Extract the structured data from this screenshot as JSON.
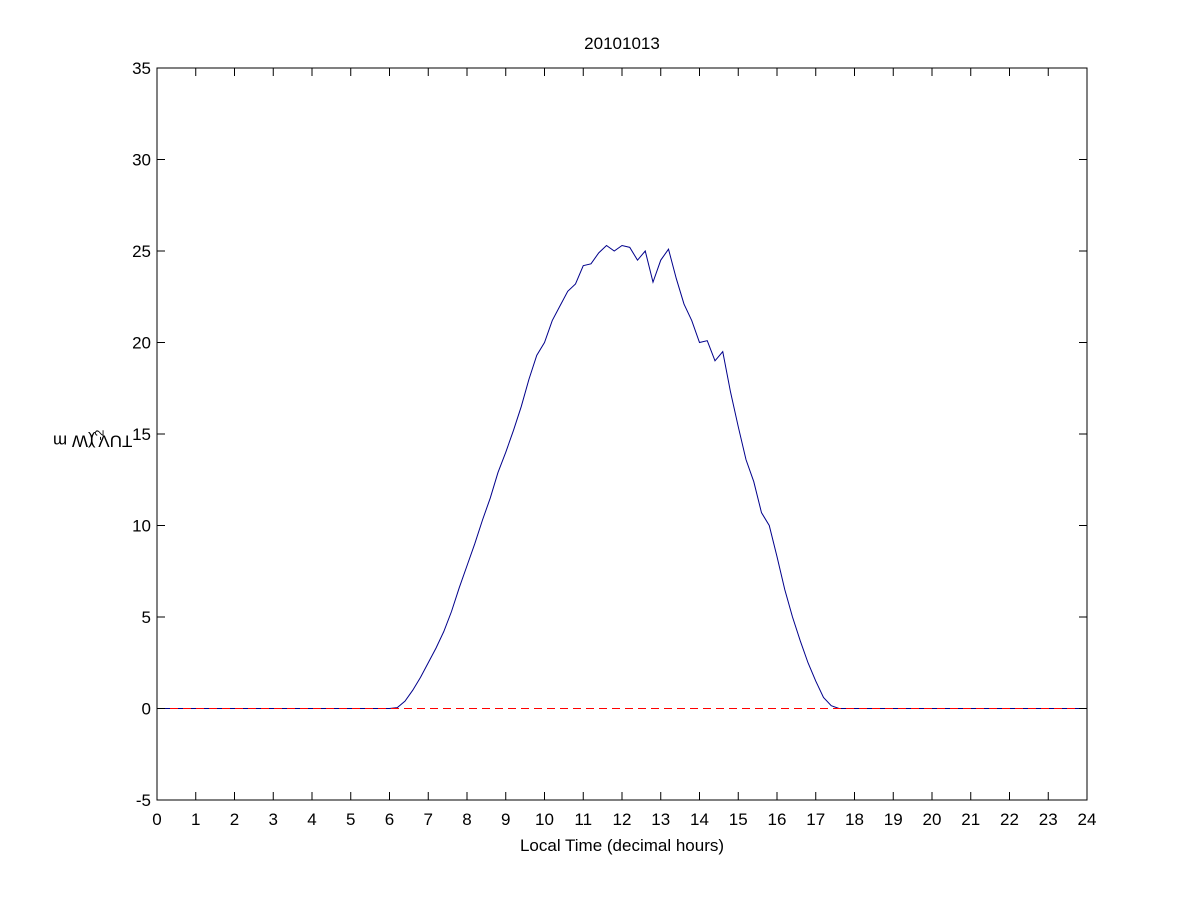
{
  "chart_data": {
    "type": "line",
    "title": "20101013",
    "xlabel": "Local Time (decimal hours)",
    "ylabel": "TUV (W m",
    "ylabel_sup": "-2",
    "ylabel_suffix": ")",
    "xlim": [
      0,
      24
    ],
    "ylim": [
      -5,
      35
    ],
    "xticks": [
      0,
      1,
      2,
      3,
      4,
      5,
      6,
      7,
      8,
      9,
      10,
      11,
      12,
      13,
      14,
      15,
      16,
      17,
      18,
      19,
      20,
      21,
      22,
      23,
      24
    ],
    "yticks": [
      -5,
      0,
      5,
      10,
      15,
      20,
      25,
      30,
      35
    ],
    "grid": false,
    "series": [
      {
        "color": "#00008b",
        "style": "solid",
        "x": [
          0,
          6.0,
          6.2,
          6.4,
          6.6,
          6.8,
          7.0,
          7.2,
          7.4,
          7.6,
          7.8,
          8.0,
          8.2,
          8.4,
          8.6,
          8.8,
          9.0,
          9.2,
          9.4,
          9.6,
          9.8,
          10.0,
          10.2,
          10.4,
          10.6,
          10.8,
          11.0,
          11.2,
          11.4,
          11.6,
          11.8,
          12.0,
          12.2,
          12.4,
          12.6,
          12.8,
          13.0,
          13.2,
          13.4,
          13.6,
          13.8,
          14.0,
          14.2,
          14.4,
          14.6,
          14.8,
          15.0,
          15.2,
          15.4,
          15.6,
          15.8,
          16.0,
          16.2,
          16.4,
          16.6,
          16.8,
          17.0,
          17.2,
          17.4,
          17.6,
          17.8,
          18.0,
          24
        ],
        "y": [
          0,
          0,
          0.05,
          0.4,
          1.0,
          1.7,
          2.5,
          3.3,
          4.2,
          5.3,
          6.6,
          7.8,
          9.0,
          10.3,
          11.5,
          12.9,
          14.0,
          15.2,
          16.5,
          18.0,
          19.3,
          20.0,
          21.2,
          22.0,
          22.8,
          23.2,
          24.2,
          24.3,
          24.9,
          25.3,
          25.0,
          25.3,
          25.2,
          24.5,
          25.0,
          23.3,
          24.5,
          25.1,
          23.5,
          22.1,
          21.2,
          20.0,
          20.1,
          19.0,
          19.5,
          17.3,
          15.4,
          13.6,
          12.4,
          10.7,
          10.0,
          8.3,
          6.5,
          5.0,
          3.7,
          2.5,
          1.5,
          0.6,
          0.15,
          0,
          0,
          0,
          0
        ]
      },
      {
        "color": "#ff0000",
        "style": "dashed",
        "x": [
          0,
          24
        ],
        "y": [
          0,
          0
        ]
      }
    ]
  }
}
